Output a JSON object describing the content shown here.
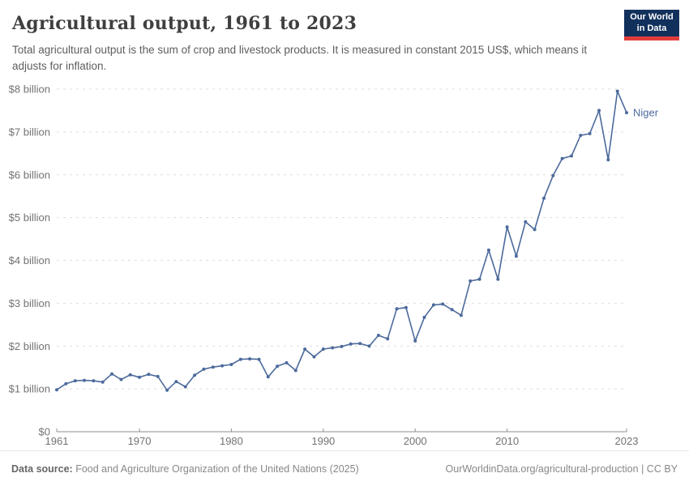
{
  "header": {
    "title": "Agricultural output, 1961 to 2023",
    "subtitle": "Total agricultural output is the sum of crop and livestock products. It is measured in constant 2015 US$, which means it adjusts for inflation."
  },
  "logo": {
    "line1": "Our World",
    "line2": "in Data",
    "bg_color": "#12305c",
    "accent_color": "#e23d3d"
  },
  "chart_data": {
    "type": "line",
    "title": "Agricultural output, 1961 to 2023",
    "xlabel": "",
    "ylabel": "",
    "xlim": [
      1961,
      2023
    ],
    "ylim": [
      0,
      8
    ],
    "grid": "horizontal-dashed",
    "legend_position": "end-of-line-label",
    "x_ticks": [
      1961,
      1970,
      1980,
      1990,
      2000,
      2010,
      2023
    ],
    "y_ticks": [
      {
        "value": 0,
        "label": "$0"
      },
      {
        "value": 1,
        "label": "$1 billion"
      },
      {
        "value": 2,
        "label": "$2 billion"
      },
      {
        "value": 3,
        "label": "$3 billion"
      },
      {
        "value": 4,
        "label": "$4 billion"
      },
      {
        "value": 5,
        "label": "$5 billion"
      },
      {
        "value": 6,
        "label": "$6 billion"
      },
      {
        "value": 7,
        "label": "$7 billion"
      },
      {
        "value": 8,
        "label": "$8 billion"
      }
    ],
    "series": [
      {
        "name": "Niger",
        "color": "#4C6A9C",
        "unit": "billion constant 2015 US$",
        "x": [
          1961,
          1962,
          1963,
          1964,
          1965,
          1966,
          1967,
          1968,
          1969,
          1970,
          1971,
          1972,
          1973,
          1974,
          1975,
          1976,
          1977,
          1978,
          1979,
          1980,
          1981,
          1982,
          1983,
          1984,
          1985,
          1986,
          1987,
          1988,
          1989,
          1990,
          1991,
          1992,
          1993,
          1994,
          1995,
          1996,
          1997,
          1998,
          1999,
          2000,
          2001,
          2002,
          2003,
          2004,
          2005,
          2006,
          2007,
          2008,
          2009,
          2010,
          2011,
          2012,
          2013,
          2014,
          2015,
          2016,
          2017,
          2018,
          2019,
          2020,
          2021,
          2022,
          2023
        ],
        "values": [
          0.98,
          1.12,
          1.19,
          1.2,
          1.19,
          1.16,
          1.35,
          1.22,
          1.33,
          1.27,
          1.34,
          1.29,
          0.97,
          1.17,
          1.05,
          1.32,
          1.46,
          1.51,
          1.54,
          1.57,
          1.69,
          1.7,
          1.69,
          1.28,
          1.53,
          1.61,
          1.43,
          1.93,
          1.75,
          1.93,
          1.96,
          1.99,
          2.05,
          2.06,
          2.0,
          2.25,
          2.17,
          2.87,
          2.9,
          2.12,
          2.67,
          2.96,
          2.98,
          2.85,
          2.72,
          3.52,
          3.56,
          4.24,
          3.56,
          4.78,
          4.1,
          4.9,
          4.72,
          5.45,
          5.98,
          6.38,
          6.44,
          6.92,
          6.96,
          7.5,
          6.35,
          7.95,
          7.45
        ]
      }
    ]
  },
  "footer": {
    "datasource_label": "Data source:",
    "datasource_text": " Food and Agriculture Organization of the United Nations (2025)",
    "url": "OurWorldinData.org/agricultural-production",
    "separator": " | ",
    "license": "CC BY"
  }
}
